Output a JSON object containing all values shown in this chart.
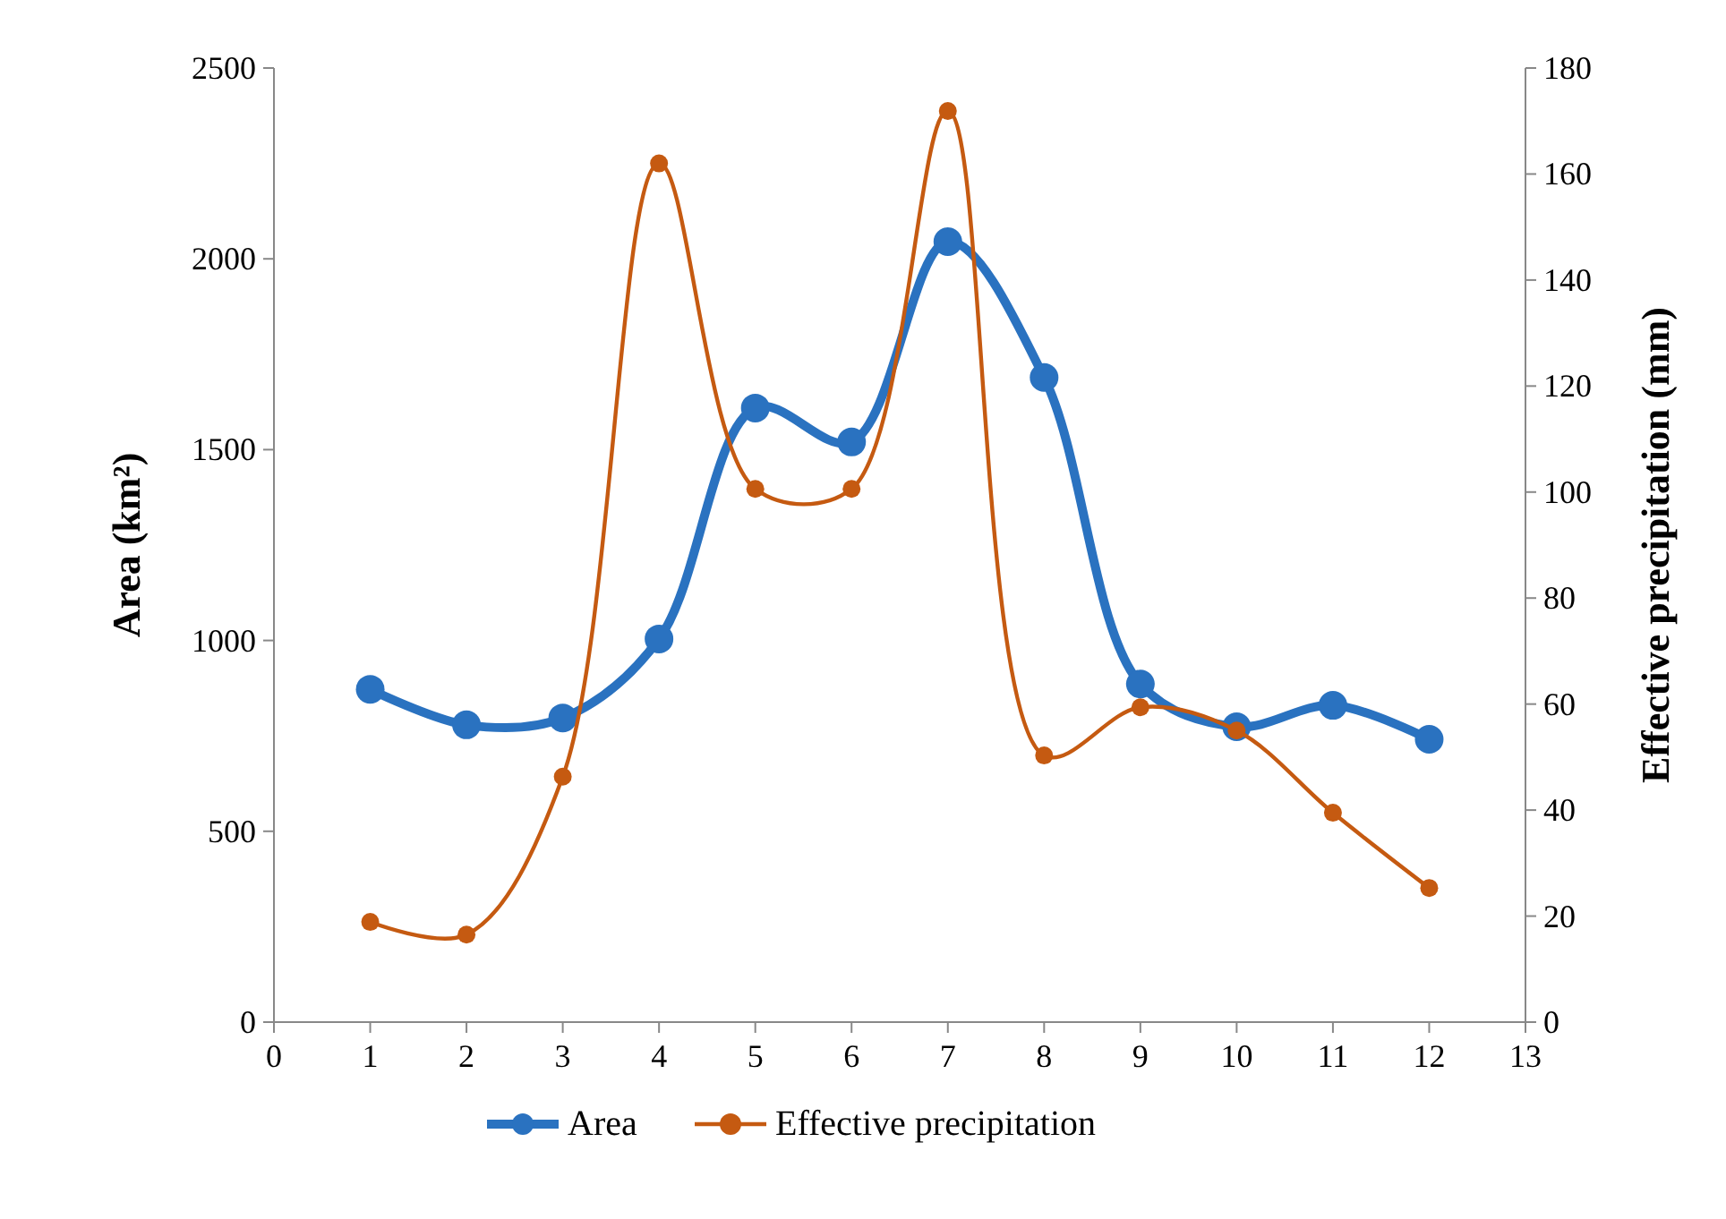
{
  "chart_data": {
    "type": "line",
    "x": [
      1,
      2,
      3,
      4,
      5,
      6,
      7,
      8,
      9,
      10,
      11,
      12
    ],
    "series": [
      {
        "name": "Area",
        "color": "#2a72c0",
        "values": [
          872,
          779,
          797,
          1004,
          1609,
          1520,
          2045,
          1689,
          886,
          774,
          830,
          741
        ]
      },
      {
        "name": "Effective precipitation",
        "color": "#c55a11",
        "axis": "y2",
        "values": [
          18.9,
          16.5,
          46.3,
          162,
          100.6,
          100.6,
          171.9,
          50.3,
          59.4,
          55,
          39.5,
          25.3
        ]
      }
    ],
    "ylabel": "Area (km²)",
    "y2label": "Effective precipitation (mm)",
    "xlim": [
      0,
      13
    ],
    "xticks": [
      0,
      1,
      2,
      3,
      4,
      5,
      6,
      7,
      8,
      9,
      10,
      11,
      12,
      13
    ],
    "ylim": [
      0,
      2500
    ],
    "yticks": [
      0,
      500,
      1000,
      1500,
      2000,
      2500
    ],
    "y2lim": [
      0,
      180
    ],
    "y2ticks": [
      0,
      20,
      40,
      60,
      80,
      100,
      120,
      140,
      160,
      180
    ],
    "marker": "circle",
    "line_style": "solid",
    "legend": "bottom",
    "grid": false
  }
}
